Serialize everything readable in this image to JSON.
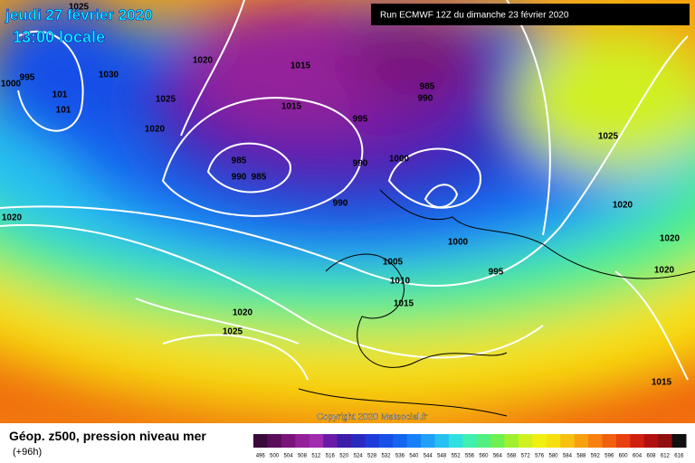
{
  "header": {
    "date": "jeudi 27 février 2020",
    "time": "13:00 locale",
    "run": "Run ECMWF 12Z du dimanche 23 février 2020"
  },
  "isobar_labels": [
    1025,
    995,
    1000,
    1030,
    101,
    101,
    1020,
    1015,
    1025,
    1015,
    1020,
    995,
    985,
    990,
    985,
    990,
    985,
    990,
    1000,
    990,
    1025,
    1020,
    1020,
    1000,
    1005,
    1020,
    995,
    1010,
    1015,
    1020,
    1020,
    1025,
    1015
  ],
  "copyright": "Copyright 2020 Meteociel.fr",
  "legend": {
    "title": "Géop. z500, pression niveau mer",
    "lead": "(+96h)",
    "values": [
      496,
      500,
      504,
      508,
      512,
      516,
      520,
      524,
      528,
      532,
      536,
      540,
      544,
      548,
      552,
      556,
      560,
      564,
      568,
      572,
      576,
      580,
      584,
      588,
      592,
      596,
      600,
      604,
      608,
      612,
      616
    ],
    "colors": [
      "#3a0a3a",
      "#5a0e5a",
      "#7a147a",
      "#94209a",
      "#a02cb0",
      "#6a1ca8",
      "#3c1ca8",
      "#2a2ac0",
      "#1e3ad8",
      "#1850e8",
      "#1466f0",
      "#1880f8",
      "#20a0f8",
      "#28c0f0",
      "#30e0e0",
      "#40f0b0",
      "#50f080",
      "#70f050",
      "#a0f030",
      "#d0f020",
      "#f0f010",
      "#f8e010",
      "#f8c010",
      "#f8a010",
      "#f88010",
      "#f06010",
      "#e84010",
      "#d02010",
      "#b01010",
      "#901010",
      "#101010"
    ]
  }
}
